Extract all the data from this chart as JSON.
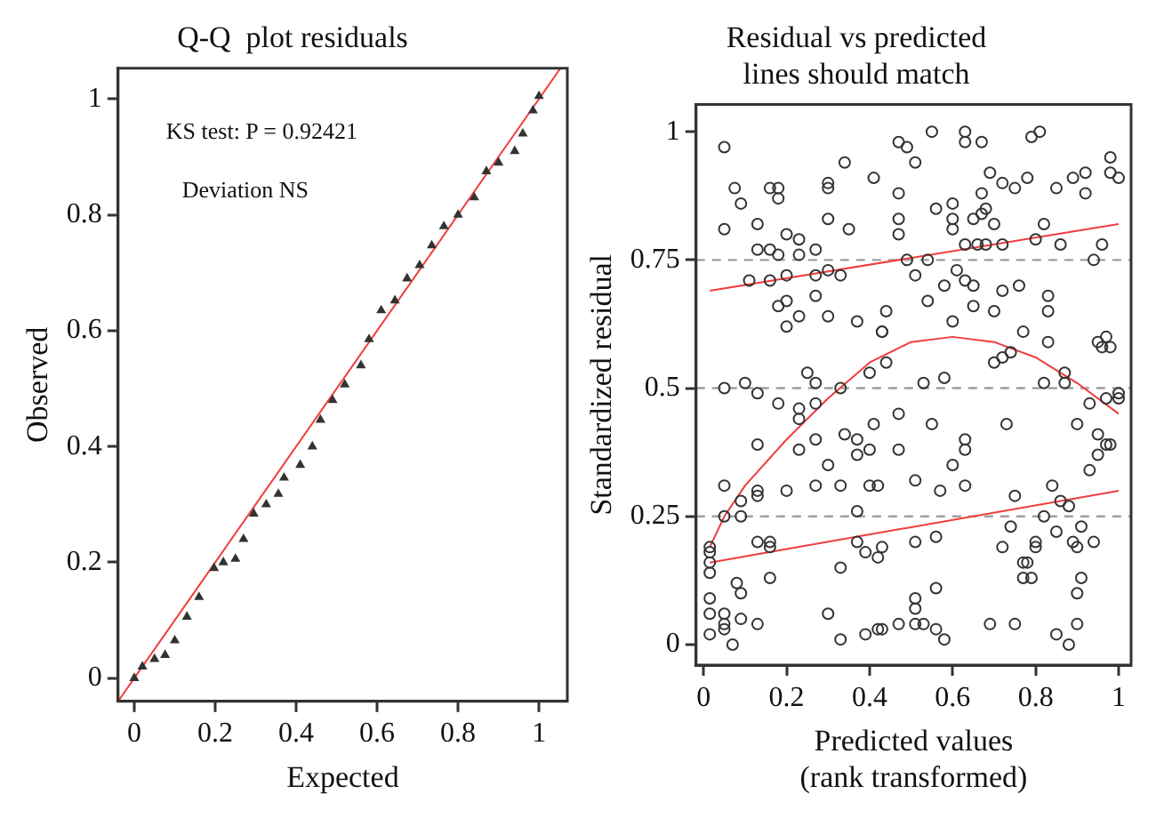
{
  "chart_data": [
    {
      "type": "scatter",
      "title": "Q-Q  plot residuals",
      "xlabel": "Expected",
      "ylabel": "Observed",
      "xlim": [
        -0.04,
        1.07
      ],
      "ylim": [
        -0.04,
        1.053
      ],
      "xticks": [
        0,
        0.2,
        0.4,
        0.6,
        0.8,
        1
      ],
      "yticks": [
        0,
        0.2,
        0.4,
        0.6,
        0.8,
        1
      ],
      "grid": false,
      "legend": false,
      "annotations": [
        "KS test: P = 0.92421",
        "Deviation NS"
      ],
      "series": [
        {
          "type": "scatter",
          "marker": "triangle",
          "color": "#333333",
          "x": [
            0,
            0.02,
            0.05,
            0.076,
            0.1,
            0.13,
            0.16,
            0.197,
            0.22,
            0.25,
            0.27,
            0.295,
            0.326,
            0.356,
            0.37,
            0.41,
            0.44,
            0.46,
            0.49,
            0.52,
            0.56,
            0.58,
            0.61,
            0.644,
            0.674,
            0.705,
            0.735,
            0.765,
            0.8,
            0.84,
            0.87,
            0.9,
            0.94,
            0.96,
            0.985,
            1.0
          ],
          "values": [
            0,
            0.02,
            0.033,
            0.04,
            0.065,
            0.106,
            0.14,
            0.19,
            0.2,
            0.206,
            0.24,
            0.284,
            0.3,
            0.318,
            0.346,
            0.368,
            0.4,
            0.446,
            0.48,
            0.507,
            0.54,
            0.585,
            0.635,
            0.652,
            0.69,
            0.713,
            0.747,
            0.78,
            0.8,
            0.83,
            0.875,
            0.89,
            0.91,
            0.94,
            0.98,
            1.005
          ]
        },
        {
          "type": "line",
          "marker": "none",
          "line_style": "solid",
          "color": "#f03c3c",
          "x": [
            -0.04,
            1.053
          ],
          "values": [
            -0.04,
            1.053
          ]
        }
      ]
    },
    {
      "type": "scatter",
      "title": "Residual vs predicted\nlines should match",
      "xlabel": "Predicted values\n(rank transformed)",
      "ylabel": "Standardized residual",
      "xlim": [
        -0.018,
        1.03
      ],
      "ylim": [
        -0.04,
        1.053
      ],
      "xticks": [
        0,
        0.2,
        0.4,
        0.6,
        0.8,
        1
      ],
      "yticks": [
        0,
        0.25,
        0.5,
        0.75,
        1
      ],
      "grid": false,
      "legend": false,
      "ref_lines": [
        {
          "axis": "y",
          "value": 0.25,
          "color": "#a0a0a0",
          "line_style": "dashed"
        },
        {
          "axis": "y",
          "value": 0.5,
          "color": "#a0a0a0",
          "line_style": "dashed"
        },
        {
          "axis": "y",
          "value": 0.75,
          "color": "#a0a0a0",
          "line_style": "dashed"
        }
      ],
      "series": [
        {
          "type": "scatter",
          "marker": "circle",
          "color": "#333333",
          "x": [
            0.05,
            0.075,
            0.09,
            0.05,
            0.13,
            0.16,
            0.18,
            0.18,
            0.3,
            0.3,
            0.34,
            0.41,
            0.3,
            0.35,
            0.13,
            0.16,
            0.18,
            0.2,
            0.23,
            0.23,
            0.27,
            0.11,
            0.16,
            0.2,
            0.27,
            0.3,
            0.33,
            0.18,
            0.2,
            0.23,
            0.27,
            0.3,
            0.2,
            0.37,
            0.43,
            0.05,
            0.1,
            0.13,
            0.18,
            0.25,
            0.27,
            0.23,
            0.23,
            0.27,
            0.33,
            0.4,
            0.13,
            0.23,
            0.27,
            0.34,
            0.37,
            0.3,
            0.37,
            0.4,
            0.41,
            0.05,
            0.13,
            0.13,
            0.09,
            0.2,
            0.27,
            0.33,
            0.4,
            0.42,
            0.05,
            0.09,
            0.37,
            0.015,
            0.015,
            0.015,
            0.015,
            0.13,
            0.16,
            0.16,
            0.37,
            0.39,
            0.42,
            0.16,
            0.08,
            0.09,
            0.015,
            0.015,
            0.05,
            0.05,
            0.05,
            0.09,
            0.13,
            0.015,
            0.07,
            0.3,
            0.33,
            0.33,
            0.39,
            0.42,
            0.47,
            0.49,
            0.51,
            0.55,
            0.63,
            0.63,
            0.67,
            0.79,
            0.81,
            0.47,
            0.47,
            0.47,
            0.56,
            0.6,
            0.6,
            0.6,
            0.65,
            0.67,
            0.68,
            0.7,
            0.67,
            0.69,
            0.72,
            0.75,
            0.78,
            0.85,
            0.89,
            0.92,
            0.92,
            0.98,
            0.98,
            1.0,
            0.63,
            0.66,
            0.68,
            0.72,
            0.8,
            0.82,
            0.86,
            0.96,
            0.49,
            0.54,
            0.94,
            0.51,
            0.61,
            0.63,
            0.65,
            0.58,
            0.54,
            0.72,
            0.76,
            0.65,
            0.7,
            0.83,
            0.83,
            0.44,
            0.6,
            0.43,
            0.77,
            0.83,
            0.95,
            0.97,
            0.96,
            0.98,
            0.44,
            0.7,
            0.72,
            0.74,
            0.53,
            0.58,
            0.82,
            0.87,
            0.87,
            0.93,
            0.97,
            1.0,
            1.0,
            0.47,
            0.55,
            0.73,
            0.9,
            0.47,
            0.63,
            0.63,
            0.95,
            0.97,
            0.95,
            0.98,
            0.6,
            0.93,
            0.51,
            0.57,
            0.63,
            0.75,
            0.84,
            0.86,
            0.88,
            0.82,
            0.74,
            0.85,
            0.91,
            0.51,
            0.56,
            0.72,
            0.8,
            0.8,
            0.89,
            0.9,
            0.94,
            0.43,
            0.77,
            0.78,
            0.77,
            0.79,
            0.91,
            0.9,
            0.56,
            0.51,
            0.51,
            0.43,
            0.47,
            0.51,
            0.53,
            0.56,
            0.58,
            0.69,
            0.75,
            0.85,
            0.88,
            0.9
          ],
          "values": [
            0.97,
            0.89,
            0.86,
            0.81,
            0.82,
            0.89,
            0.89,
            0.87,
            0.9,
            0.89,
            0.94,
            0.91,
            0.83,
            0.81,
            0.77,
            0.77,
            0.76,
            0.8,
            0.79,
            0.76,
            0.77,
            0.71,
            0.71,
            0.72,
            0.72,
            0.73,
            0.72,
            0.66,
            0.67,
            0.64,
            0.68,
            0.64,
            0.62,
            0.63,
            0.61,
            0.5,
            0.51,
            0.49,
            0.47,
            0.53,
            0.51,
            0.46,
            0.44,
            0.47,
            0.5,
            0.53,
            0.39,
            0.38,
            0.4,
            0.41,
            0.4,
            0.35,
            0.37,
            0.38,
            0.43,
            0.31,
            0.3,
            0.29,
            0.28,
            0.3,
            0.31,
            0.31,
            0.31,
            0.31,
            0.25,
            0.25,
            0.26,
            0.19,
            0.18,
            0.16,
            0.14,
            0.2,
            0.2,
            0.19,
            0.2,
            0.18,
            0.17,
            0.13,
            0.12,
            0.1,
            0.09,
            0.06,
            0.06,
            0.04,
            0.03,
            0.05,
            0.04,
            0.02,
            0.0,
            0.06,
            0.15,
            0.01,
            0.02,
            0.03,
            0.98,
            0.97,
            0.94,
            1.0,
            1.0,
            0.98,
            0.98,
            0.99,
            1.0,
            0.88,
            0.83,
            0.8,
            0.85,
            0.86,
            0.83,
            0.81,
            0.83,
            0.84,
            0.85,
            0.82,
            0.88,
            0.92,
            0.9,
            0.89,
            0.91,
            0.89,
            0.91,
            0.92,
            0.88,
            0.95,
            0.92,
            0.91,
            0.78,
            0.78,
            0.78,
            0.78,
            0.79,
            0.82,
            0.78,
            0.78,
            0.75,
            0.75,
            0.75,
            0.72,
            0.73,
            0.71,
            0.7,
            0.7,
            0.67,
            0.69,
            0.7,
            0.66,
            0.65,
            0.68,
            0.65,
            0.65,
            0.63,
            0.61,
            0.61,
            0.59,
            0.59,
            0.6,
            0.58,
            0.58,
            0.55,
            0.55,
            0.56,
            0.57,
            0.51,
            0.52,
            0.51,
            0.53,
            0.51,
            0.47,
            0.48,
            0.49,
            0.48,
            0.45,
            0.43,
            0.43,
            0.43,
            0.38,
            0.4,
            0.38,
            0.41,
            0.39,
            0.37,
            0.39,
            0.35,
            0.34,
            0.32,
            0.3,
            0.31,
            0.29,
            0.31,
            0.28,
            0.27,
            0.25,
            0.23,
            0.22,
            0.23,
            0.2,
            0.21,
            0.19,
            0.19,
            0.2,
            0.2,
            0.19,
            0.2,
            0.19,
            0.16,
            0.16,
            0.13,
            0.13,
            0.13,
            0.1,
            0.11,
            0.09,
            0.07,
            0.03,
            0.04,
            0.04,
            0.04,
            0.03,
            0.01,
            0.04,
            0.04,
            0.02,
            0.0,
            0.04
          ]
        },
        {
          "type": "line",
          "marker": "none",
          "line_style": "solid",
          "color": "#f03c3c",
          "x": [
            0.015,
            1.0
          ],
          "values": [
            0.69,
            0.82
          ]
        },
        {
          "type": "line",
          "marker": "none",
          "line_style": "solid",
          "color": "#f03c3c",
          "x": [
            0.015,
            0.05,
            0.1,
            0.2,
            0.3,
            0.4,
            0.5,
            0.6,
            0.7,
            0.8,
            0.9,
            1.0
          ],
          "values": [
            0.19,
            0.25,
            0.31,
            0.4,
            0.48,
            0.55,
            0.59,
            0.6,
            0.59,
            0.56,
            0.51,
            0.45
          ]
        },
        {
          "type": "line",
          "marker": "none",
          "line_style": "solid",
          "color": "#f03c3c",
          "x": [
            0.015,
            1.0
          ],
          "values": [
            0.16,
            0.3
          ]
        }
      ]
    }
  ]
}
